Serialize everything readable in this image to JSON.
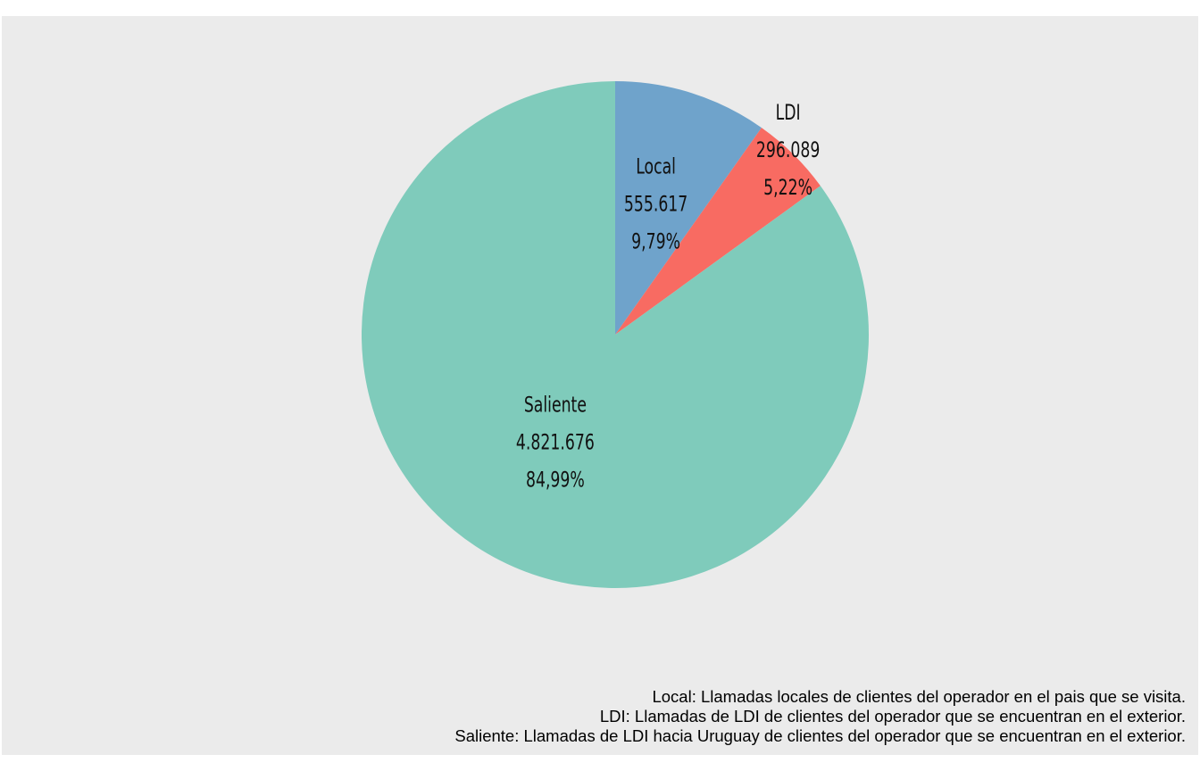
{
  "chart_data": {
    "type": "pie",
    "title": "",
    "legend": "none",
    "start_angle": "12 o'clock, clockwise",
    "slices": [
      {
        "name": "Local",
        "value": 555617,
        "value_label": "555.617",
        "percent_label": "9,79%",
        "color": "#6fa3cb"
      },
      {
        "name": "LDI",
        "value": 296089,
        "value_label": "296.089",
        "percent_label": "5,22%",
        "color": "#f86b62"
      },
      {
        "name": "Saliente",
        "value": 4821676,
        "value_label": "4.821.676",
        "percent_label": "84,99%",
        "color": "#7fcbbb"
      }
    ]
  },
  "caption": [
    "Local: Llamadas locales de clientes del operador en el pais que se visita.",
    "LDI: Llamadas de LDI de clientes del operador que se encuentran en el exterior.",
    "Saliente: Llamadas de LDI hacia Uruguay de clientes del operador que se encuentran en el exterior."
  ],
  "colors": {
    "panel_background": "#ebebeb",
    "page_background": "#ffffff"
  }
}
